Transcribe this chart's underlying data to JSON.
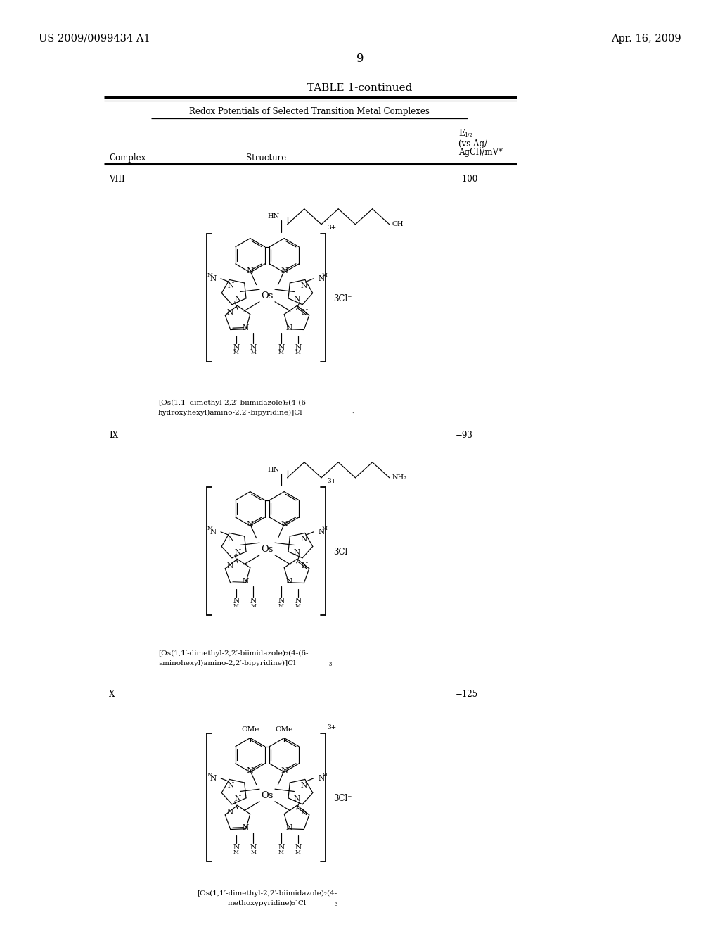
{
  "bg_color": "#ffffff",
  "page_number": "9",
  "header_left": "US 2009/0099434 A1",
  "header_right": "Apr. 16, 2009",
  "table_title": "TABLE 1-continued",
  "table_subtitle": "Redox Potentials of Selected Transition Metal Complexes",
  "col_complex": "Complex",
  "col_structure": "Structure",
  "col_e12_line1": "E",
  "col_e12_sub": "1/2",
  "col_e12_line2": "(vs Ag/",
  "col_e12_line3": "AgCl)/mV*",
  "entries": [
    {
      "complex": "VIII",
      "value": "−100",
      "chain_label_right": "OH",
      "chain_label_left": "HN",
      "caption_line1": "[Os(1,1′-dimethyl-2,2′-biimidazole)₂(4-(6-",
      "caption_line2": "hydroxyhexyl)amino-2,2′-bipyridine)]Cl₃"
    },
    {
      "complex": "IX",
      "value": "−93",
      "chain_label_right": "NH₂",
      "chain_label_left": "HN",
      "caption_line1": "[Os(1,1′-dimethyl-2,2′-biimidazole)₂(4-(6-",
      "caption_line2": "aminohexyl)amino-2,2′-bipyridine)]Cl₃"
    },
    {
      "complex": "X",
      "value": "−125",
      "substituent_left": "OMe",
      "substituent_right": "OMe",
      "caption_line1": "[Os(1,1′-dimethyl-2,2′-biimidazole)₂(4-",
      "caption_line2": "methoxypyridine)₂]Cl₃"
    }
  ],
  "bracket_charge": "3+",
  "counter_ion": "3Cl⁻",
  "font_size_header": 10.5,
  "font_size_table_title": 11,
  "font_size_body": 8.5,
  "font_size_caption": 7.5,
  "font_size_small": 6.5
}
